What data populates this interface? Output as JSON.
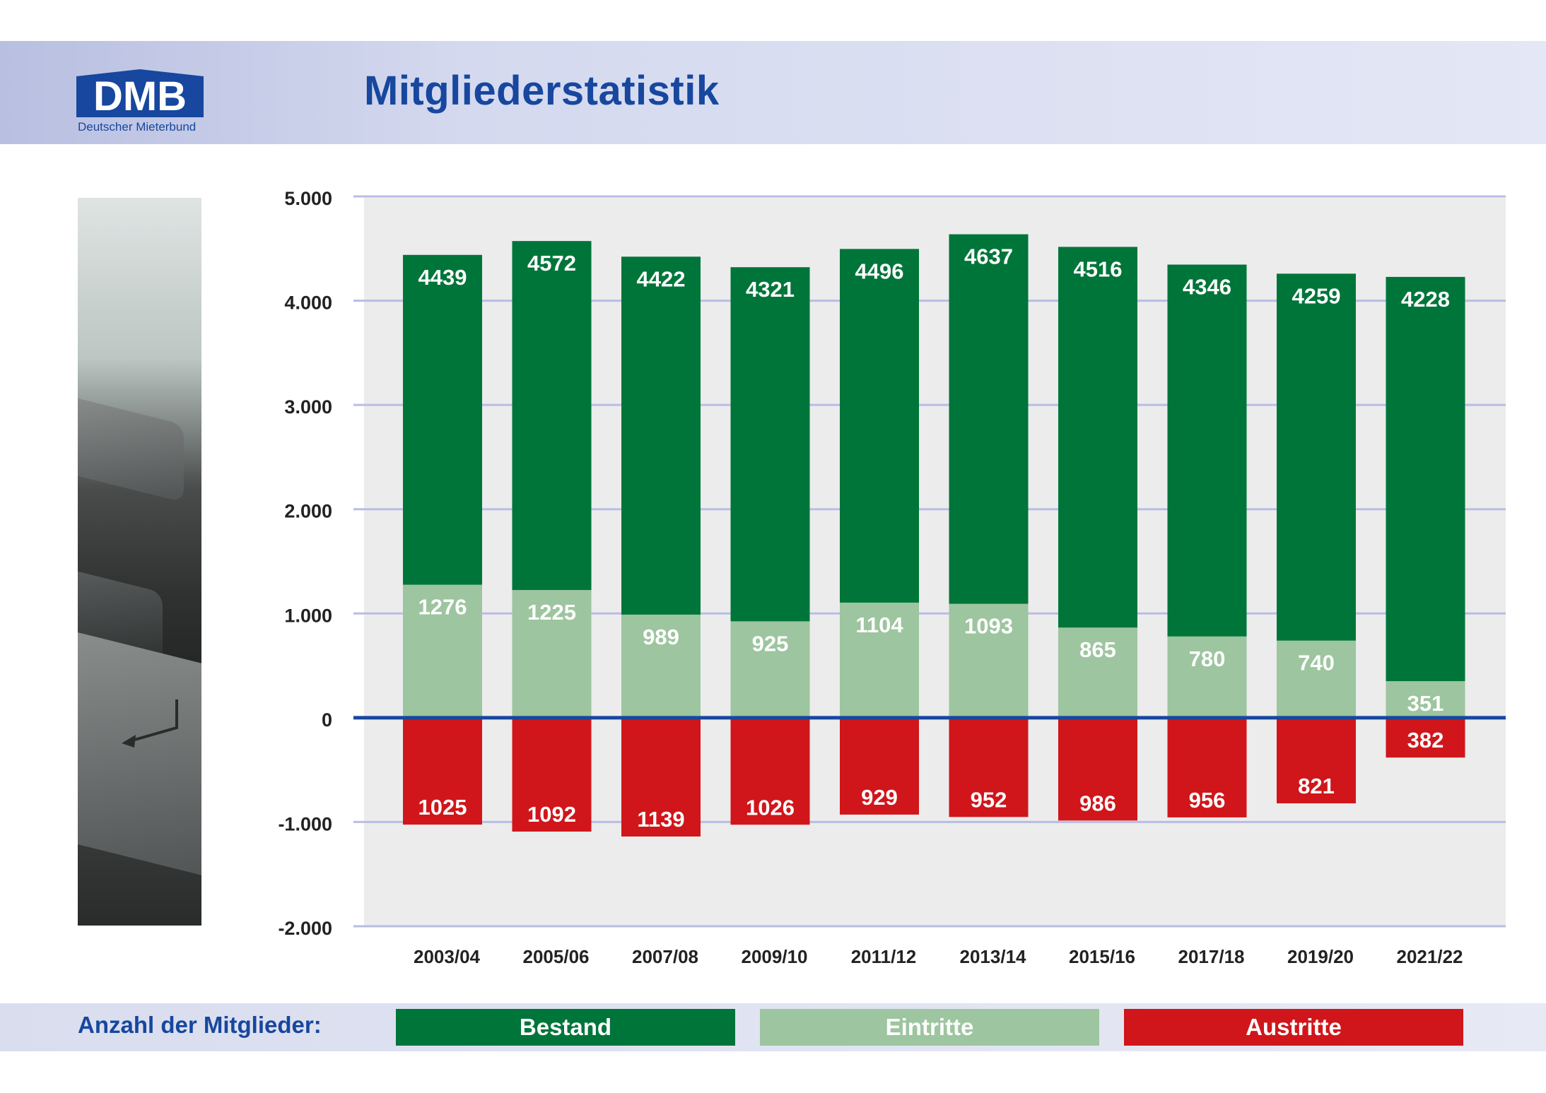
{
  "header": {
    "logo_text": "DMB",
    "logo_subtitle": "Deutscher Mieterbund",
    "title": "Mitgliederstatistik"
  },
  "colors": {
    "bestand": "#00753a",
    "eintritte": "#9dc59f",
    "austritte": "#d0161b",
    "brand_blue": "#17479e",
    "plot_bg": "#ececec",
    "gridline": "#b9bde3"
  },
  "chart_data": {
    "type": "bar",
    "categories": [
      "2003/04",
      "2005/06",
      "2007/08",
      "2009/10",
      "2011/12",
      "2013/14",
      "2015/16",
      "2017/18",
      "2019/20",
      "2021/22"
    ],
    "series": [
      {
        "name": "Bestand",
        "values": [
          4439,
          4572,
          4422,
          4321,
          4496,
          4637,
          4516,
          4346,
          4259,
          4228
        ]
      },
      {
        "name": "Eintritte",
        "values": [
          1276,
          1225,
          989,
          925,
          1104,
          1093,
          865,
          780,
          740,
          351
        ]
      },
      {
        "name": "Austritte",
        "values": [
          1025,
          1092,
          1139,
          1026,
          929,
          952,
          986,
          956,
          821,
          382
        ]
      }
    ],
    "y_ticks": [
      "5.000",
      "4.000",
      "3.000",
      "2.000",
      "1.000",
      "0",
      "-1.000",
      "-2.000"
    ],
    "ylim": [
      -2000,
      5000
    ],
    "grid": true,
    "legend_position": "bottom"
  },
  "legend": {
    "label": "Anzahl der Mitglieder:",
    "items": [
      "Bestand",
      "Eintritte",
      "Austritte"
    ]
  }
}
